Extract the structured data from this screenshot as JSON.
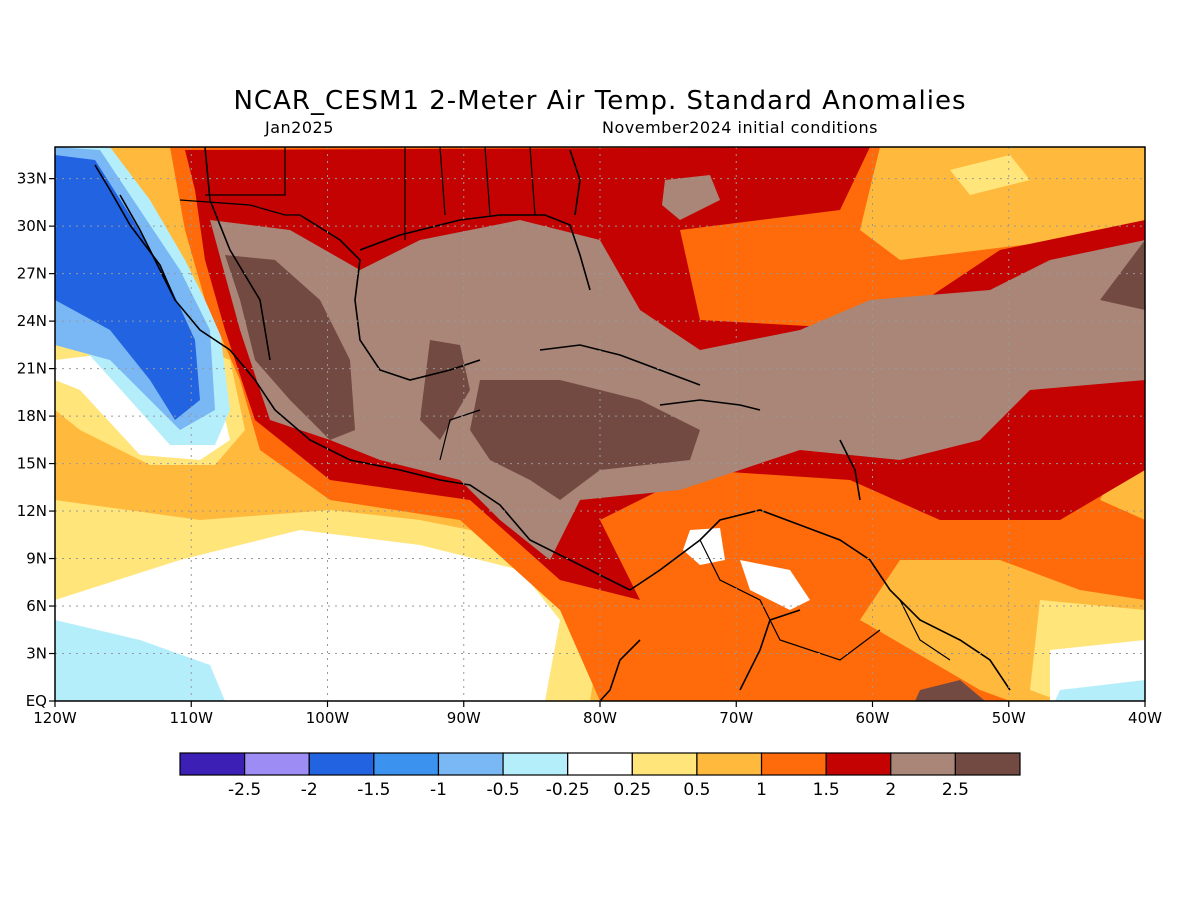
{
  "title": "NCAR_CESM1 2-Meter Air Temp. Standard Anomalies",
  "subtitle_left": "Jan2025",
  "subtitle_right": "November2024 initial conditions",
  "map": {
    "lon_range": [
      -120,
      -40
    ],
    "lat_range": [
      0,
      35
    ],
    "x_ticks": [
      "120W",
      "110W",
      "100W",
      "90W",
      "80W",
      "70W",
      "60W",
      "50W",
      "40W"
    ],
    "y_ticks": [
      "EQ",
      "3N",
      "6N",
      "9N",
      "12N",
      "15N",
      "18N",
      "21N",
      "24N",
      "27N",
      "30N",
      "33N"
    ],
    "gridlines": true
  },
  "colorbar": {
    "colors": [
      "#3c1fb4",
      "#9d8cf3",
      "#2163e0",
      "#3b93ef",
      "#79b8f5",
      "#b4eefa",
      "#ffffff",
      "#ffe57a",
      "#ffb93c",
      "#ff6a0a",
      "#c40202",
      "#a98678",
      "#734a41"
    ],
    "labels": [
      "-2.5",
      "-2",
      "-1.5",
      "-1",
      "-0.5",
      "-0.25",
      "0.25",
      "0.5",
      "1",
      "1.5",
      "2",
      "2.5"
    ]
  }
}
